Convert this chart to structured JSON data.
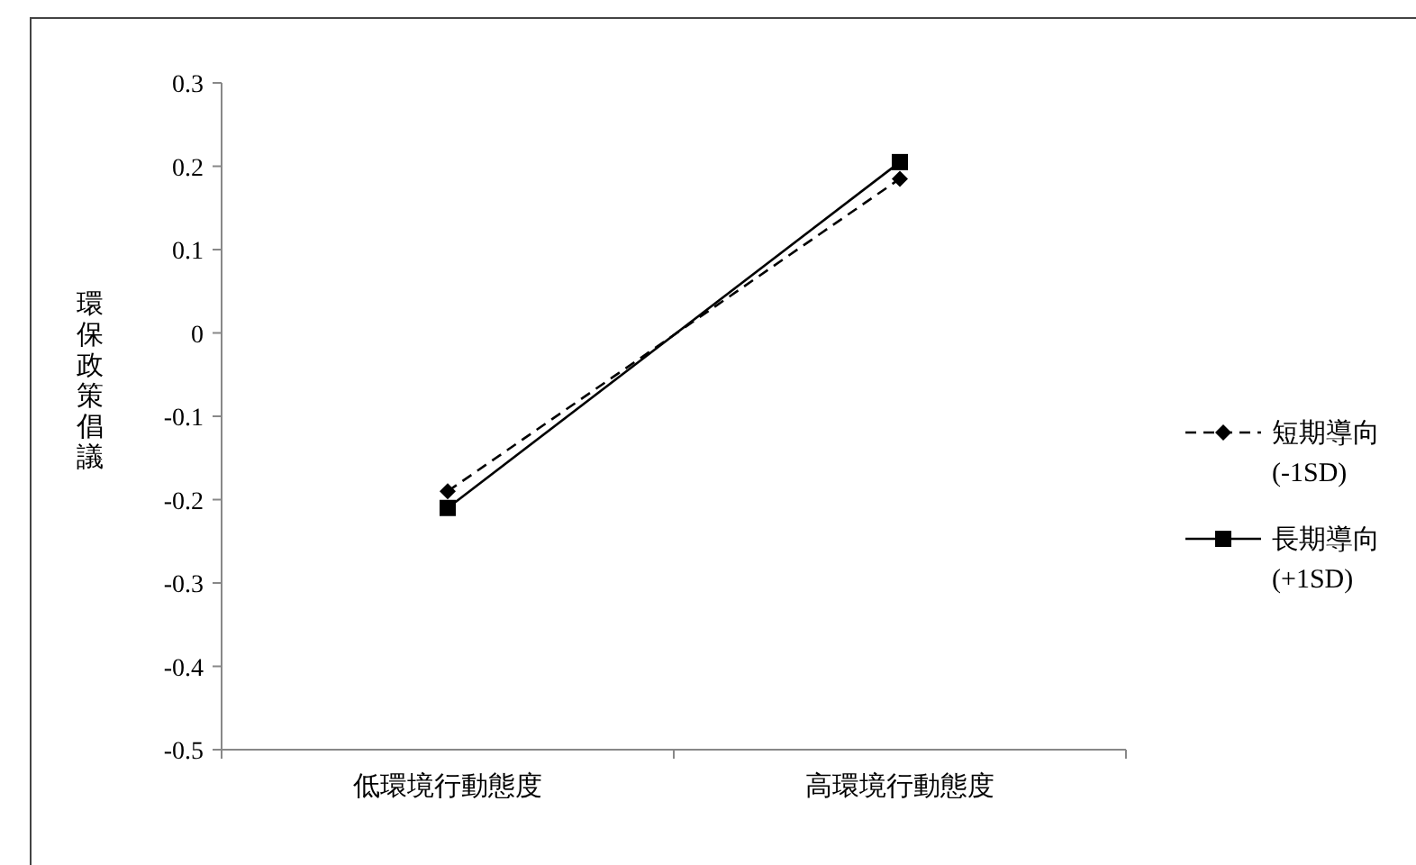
{
  "chart_data": {
    "type": "line",
    "ylabel": "環保政策倡議",
    "categories": [
      "低環境行動態度",
      "高環境行動態度"
    ],
    "series": [
      {
        "name": "短期導向\n(-1SD)",
        "color": "#000000",
        "values": [
          -0.19,
          0.185
        ],
        "marker": "diamond",
        "line_style": "dashed"
      },
      {
        "name": "長期導向\n(+1SD)",
        "color": "#000000",
        "values": [
          -0.21,
          0.205
        ],
        "marker": "square",
        "line_style": "solid"
      }
    ],
    "ylim": [
      -0.5,
      0.3
    ],
    "yticks": [
      -0.5,
      -0.4,
      -0.3,
      -0.2,
      -0.1,
      0,
      0.1,
      0.2,
      0.3
    ],
    "grid": false,
    "legend": "right"
  }
}
